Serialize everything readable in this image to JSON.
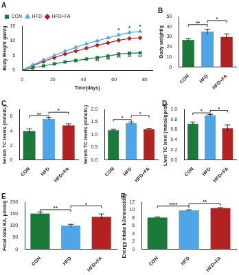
{
  "chart_data": [
    {
      "type": "line",
      "title": "A",
      "xlabel": "Time(days)",
      "ylabel": "Body Weight gain/g",
      "x": [
        0,
        7,
        14,
        21,
        28,
        35,
        42,
        49,
        56,
        63,
        70,
        77
      ],
      "series": [
        {
          "name": "CON",
          "color": "#1a7a3a",
          "marker": "square",
          "values": [
            0,
            0.8,
            1.5,
            2.2,
            2.8,
            3.3,
            3.8,
            4.3,
            4.8,
            5.5,
            5.8,
            5.9
          ]
        },
        {
          "name": "HFD",
          "color": "#4ea6e8",
          "marker": "triangle",
          "values": [
            0,
            1.8,
            3.5,
            5,
            6.5,
            7.8,
            9,
            10,
            11,
            12,
            12.8,
            13.2
          ]
        },
        {
          "name": "HFD+FA",
          "color": "#b22222",
          "marker": "diamond",
          "values": [
            0,
            1.5,
            3,
            4.3,
            5.5,
            6.5,
            7.5,
            8.5,
            9.3,
            10.2,
            10.8,
            11
          ]
        }
      ],
      "xlim": [
        0,
        85
      ],
      "xticks": [
        0,
        20,
        40,
        60,
        80
      ],
      "ylim": [
        0,
        15
      ],
      "yticks": [
        0,
        5,
        10,
        15
      ],
      "grid": false,
      "legend": "top left",
      "annotations": [
        {
          "text": "**",
          "x": 49,
          "y": 2.8
        },
        {
          "text": "**",
          "x": 56,
          "y": 3.3
        },
        {
          "text": "**",
          "x": 63,
          "y": 4.0
        },
        {
          "text": "**",
          "x": 70,
          "y": 4.3
        },
        {
          "text": "**",
          "x": 77,
          "y": 4.4
        },
        {
          "text": "*",
          "x": 63,
          "y": 13.3
        },
        {
          "text": "*",
          "x": 70,
          "y": 14.1
        },
        {
          "text": "*",
          "x": 77,
          "y": 14.5
        }
      ]
    },
    {
      "type": "bar",
      "title": "B",
      "ylabel": "Body weight/g",
      "categories": [
        "CON",
        "HFD",
        "HFD+FA"
      ],
      "values": [
        27,
        35,
        30
      ],
      "errors": [
        1.2,
        2.5,
        2.8
      ],
      "colors": [
        "#1a7a3a",
        "#4ea6e8",
        "#b22222"
      ],
      "ylim": [
        0,
        50
      ],
      "yticks": [
        0,
        10,
        20,
        30,
        40,
        50
      ],
      "grid": false,
      "annotations": [
        {
          "text": "**",
          "from": 0,
          "to": 1,
          "y": 42
        },
        {
          "text": "*",
          "from": 1,
          "to": 2,
          "y": 46
        }
      ]
    },
    {
      "type": "bar",
      "title": "C",
      "ylabel": "Serum TC levels (mmol/L)",
      "categories": [
        "CON",
        "HFD",
        "HFD+FA"
      ],
      "values": [
        4.0,
        5.7,
        4.8
      ],
      "errors": [
        0.3,
        0.2,
        0.2
      ],
      "colors": [
        "#1a7a3a",
        "#4ea6e8",
        "#b22222"
      ],
      "ylim": [
        0,
        7
      ],
      "yticks": [
        0,
        2,
        4,
        6
      ],
      "grid": false,
      "annotations": [
        {
          "text": "**",
          "from": 0,
          "to": 1,
          "y": 6.1
        },
        {
          "text": "*",
          "from": 1,
          "to": 2,
          "y": 6.6
        }
      ]
    },
    {
      "type": "bar",
      "ylabel": "Serum TC levels (mmol/L)",
      "categories": [
        "CON",
        "HFD",
        "HFD+FA"
      ],
      "values": [
        1.18,
        1.45,
        1.22
      ],
      "errors": [
        0.03,
        0.05,
        0.03
      ],
      "colors": [
        "#1a7a3a",
        "#4ea6e8",
        "#b22222"
      ],
      "ylim": [
        0,
        2.0
      ],
      "yticks": [
        {
          "value": 0,
          "label": "0.0"
        },
        {
          "value": 0.5,
          "label": "0.5"
        },
        {
          "value": 1.0,
          "label": "1.0"
        },
        {
          "value": 1.5,
          "label": "1.5"
        },
        {
          "value": 2.0,
          "label": "2.0"
        }
      ],
      "grid": false,
      "annotations": [
        {
          "text": "*",
          "from": 0,
          "to": 1,
          "y": 1.6
        },
        {
          "text": "*",
          "from": 1,
          "to": 2,
          "y": 1.75
        }
      ]
    },
    {
      "type": "bar",
      "title": "D",
      "ylabel": "Liver TC level (mmol/gprot)",
      "categories": [
        "CON",
        "HFD",
        "HFD+FA"
      ],
      "values": [
        0.72,
        0.88,
        0.63
      ],
      "errors": [
        0.03,
        0.02,
        0.06
      ],
      "colors": [
        "#1a7a3a",
        "#4ea6e8",
        "#b22222"
      ],
      "ylim": [
        0,
        1.0
      ],
      "yticks": [
        {
          "value": 0,
          "label": "0.0"
        },
        {
          "value": 0.2,
          "label": "0.2"
        },
        {
          "value": 0.4,
          "label": "0.4"
        },
        {
          "value": 0.6,
          "label": "0.6"
        },
        {
          "value": 0.8,
          "label": "0.8"
        },
        {
          "value": 1.0,
          "label": "1.0"
        }
      ],
      "grid": false,
      "annotations": [
        {
          "text": "*",
          "from": 0,
          "to": 1,
          "y": 0.93
        },
        {
          "text": "*",
          "from": 1,
          "to": 2,
          "y": 0.98
        }
      ]
    },
    {
      "type": "bar",
      "title": "E",
      "ylabel": "Fecal total BA, μmol/g",
      "categories": [
        "CON",
        "HFD",
        "HFD+FA"
      ],
      "values": [
        152,
        100,
        138
      ],
      "errors": [
        6,
        6,
        12
      ],
      "colors": [
        "#1a7a3a",
        "#4ea6e8",
        "#b22222"
      ],
      "ylim": [
        0,
        200
      ],
      "yticks": [
        0,
        50,
        100,
        150,
        200
      ],
      "grid": false,
      "annotations": [
        {
          "text": "**",
          "from": 0,
          "to": 1,
          "y": 168
        },
        {
          "text": "*",
          "from": 1,
          "to": 2,
          "y": 184
        }
      ]
    },
    {
      "type": "bar",
      "title": "F",
      "ylabel": "Energy intake kJ/mouse/day",
      "categories": [
        "CON",
        "HFD",
        "HFD+FA"
      ],
      "values": [
        8.1,
        9.9,
        10.5
      ],
      "errors": [
        0.1,
        0.15,
        0.1
      ],
      "colors": [
        "#1a7a3a",
        "#4ea6e8",
        "#b22222"
      ],
      "ylim": [
        0,
        12
      ],
      "yticks": [
        0,
        2,
        4,
        6,
        8,
        10,
        12
      ],
      "grid": false,
      "annotations": [
        {
          "text": "****",
          "from": 0,
          "to": 1,
          "y": 11.0
        },
        {
          "text": "**",
          "from": 1,
          "to": 2,
          "y": 11.6
        }
      ]
    }
  ]
}
